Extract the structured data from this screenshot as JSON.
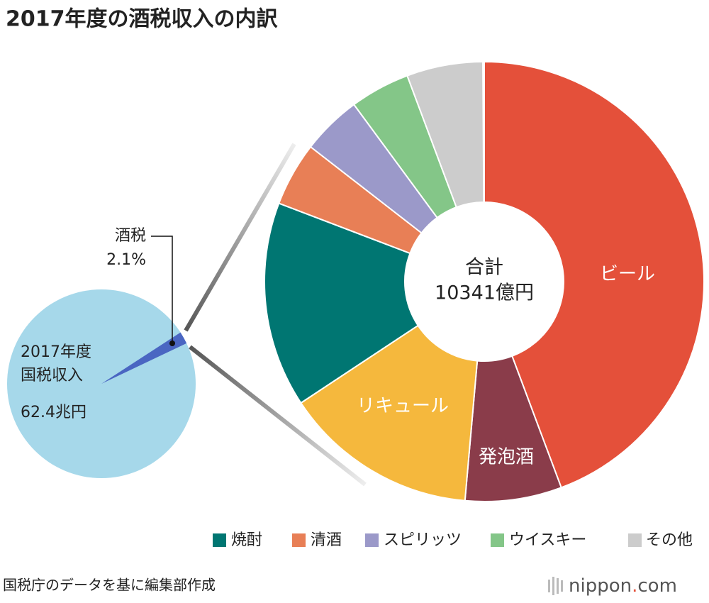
{
  "title": "2017年度の酒税収入の内訳",
  "chart_data": [
    {
      "type": "pie",
      "label_lines": [
        "2017年度",
        "国税収入"
      ],
      "total_label": "62.4兆円",
      "categories": [
        "酒税"
      ],
      "values": [
        2.1
      ],
      "value_labels": [
        "2.1%"
      ],
      "base_color": "#a6d8ea",
      "colors": [
        "#4a66c2"
      ]
    },
    {
      "type": "donut",
      "center_label": [
        "合計",
        "10341億円"
      ],
      "categories": [
        "ビール",
        "発泡酒",
        "リキュール",
        "焼酎",
        "清酒",
        "スピリッツ",
        "ウイスキー",
        "その他"
      ],
      "values": [
        44.3,
        7.1,
        14.3,
        15.1,
        4.7,
        4.4,
        4.4,
        5.6
      ],
      "colors": [
        "#e4503a",
        "#8a3c4a",
        "#f5b83d",
        "#007672",
        "#e87f56",
        "#9b99c9",
        "#84c688",
        "#cccccc"
      ]
    }
  ],
  "source": "国税庁のデータを基に編集部作成",
  "brand": [
    "nippon",
    ".",
    "com"
  ]
}
